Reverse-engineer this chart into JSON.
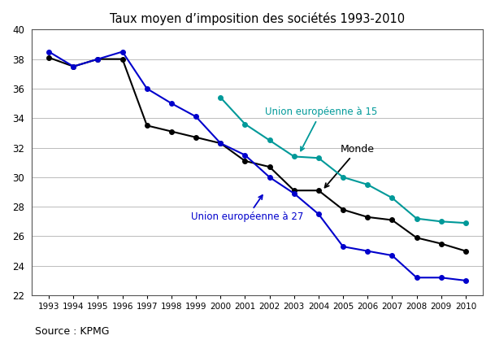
{
  "title": "Taux moyen d’imposition des sociétés 1993-2010",
  "source": "Source : KPMG",
  "years": [
    1993,
    1994,
    1995,
    1996,
    1997,
    1998,
    1999,
    2000,
    2001,
    2002,
    2003,
    2004,
    2005,
    2006,
    2007,
    2008,
    2009,
    2010
  ],
  "eu27": [
    38.5,
    37.5,
    38.0,
    38.5,
    36.0,
    35.0,
    34.1,
    32.3,
    31.5,
    30.0,
    28.9,
    27.5,
    25.3,
    25.0,
    24.7,
    23.2,
    23.2,
    23.0
  ],
  "eu15": [
    null,
    null,
    null,
    null,
    null,
    null,
    null,
    35.4,
    33.6,
    32.5,
    31.4,
    31.3,
    30.0,
    29.5,
    28.6,
    27.2,
    27.0,
    26.9
  ],
  "monde": [
    38.1,
    37.5,
    38.0,
    38.0,
    33.5,
    33.1,
    32.7,
    32.3,
    31.1,
    30.7,
    29.1,
    29.1,
    27.8,
    27.3,
    27.1,
    25.9,
    25.5,
    25.0
  ],
  "eu27_color": "#0000cc",
  "eu15_color": "#009999",
  "monde_color": "#000000",
  "ylim": [
    22,
    40
  ],
  "yticks": [
    22,
    24,
    26,
    28,
    30,
    32,
    34,
    36,
    38,
    40
  ],
  "background_color": "#ffffff",
  "grid_color": "#bbbbbb"
}
